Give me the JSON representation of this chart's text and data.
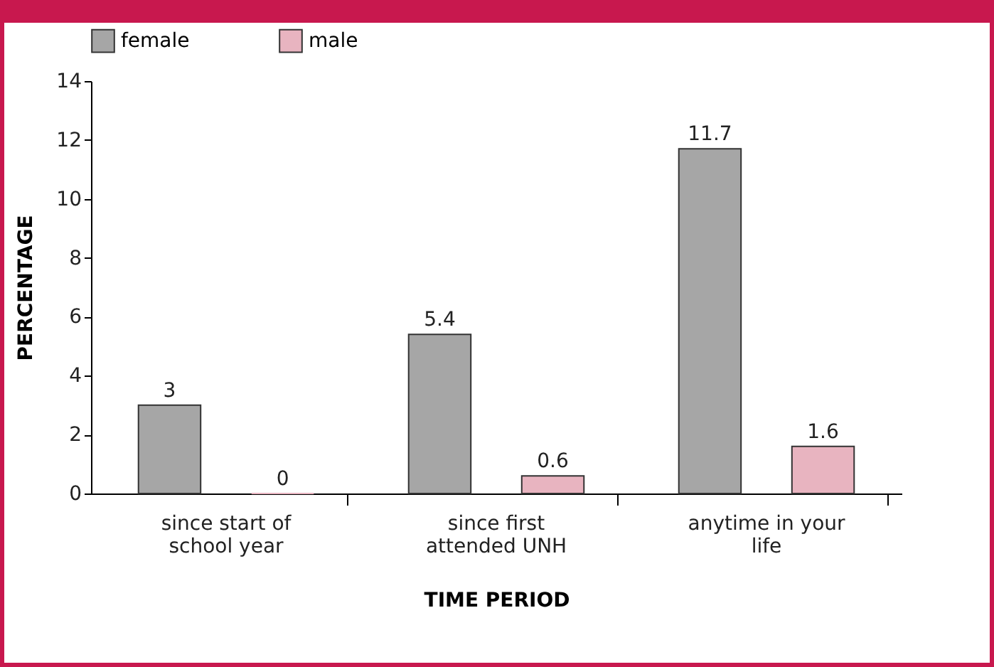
{
  "chart_data": {
    "type": "bar",
    "xlabel": "TIME PERIOD",
    "ylabel": "PERCENTAGE",
    "categories": [
      "since start of school year",
      "since first attended UNH",
      "anytime in your life"
    ],
    "series": [
      {
        "name": "female",
        "color": "#a6a6a6",
        "values": [
          3,
          5.4,
          11.7
        ]
      },
      {
        "name": "male",
        "color": "#e8b4c0",
        "values": [
          0,
          0.6,
          1.6
        ]
      }
    ],
    "ylim": [
      0,
      14
    ],
    "yticks": [
      0,
      2,
      4,
      6,
      8,
      10,
      12,
      14
    ],
    "data_labels": true,
    "grid": false,
    "legend": "top"
  }
}
